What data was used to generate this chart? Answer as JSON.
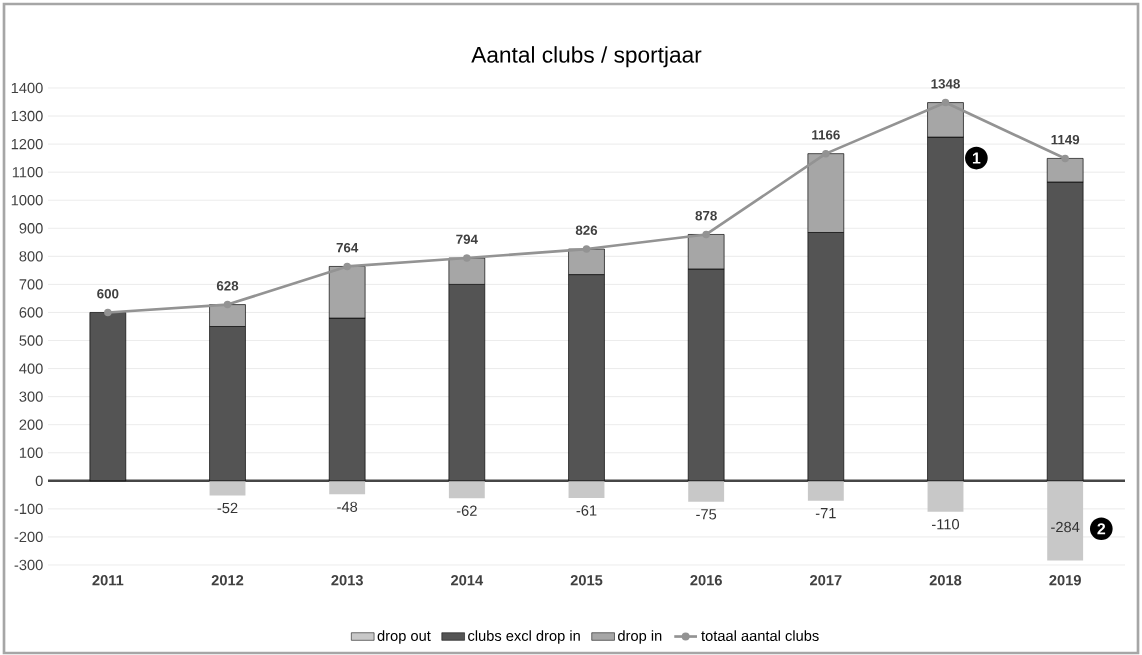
{
  "chart_data": {
    "type": "bar",
    "title": "Aantal clubs / sportjaar",
    "stacked": true,
    "categories": [
      "2011",
      "2012",
      "2013",
      "2014",
      "2015",
      "2016",
      "2017",
      "2018",
      "2019"
    ],
    "series": [
      {
        "name": "drop out",
        "type": "bar",
        "color": "#c8c8c8",
        "values": [
          null,
          -52,
          -48,
          -62,
          -61,
          -75,
          -71,
          -110,
          -284
        ],
        "value_labels": [
          null,
          "-52",
          "-48",
          "-62",
          "-61",
          "-75",
          "-71",
          "-110",
          "-284"
        ]
      },
      {
        "name": "clubs excl drop in",
        "type": "bar",
        "color": "#545454",
        "values": [
          600,
          550,
          580,
          700,
          735,
          755,
          885,
          1225,
          1065
        ]
      },
      {
        "name": "drop in",
        "type": "bar",
        "color": "#a6a6a6",
        "values": [
          null,
          78,
          184,
          94,
          91,
          123,
          281,
          123,
          84
        ]
      },
      {
        "name": "totaal aantal clubs",
        "type": "line",
        "color": "#939393",
        "marker": "circle",
        "values": [
          600,
          628,
          764,
          794,
          826,
          878,
          1166,
          1348,
          1149
        ],
        "value_labels": [
          "600",
          "628",
          "764",
          "794",
          "826",
          "878",
          "1166",
          "1348",
          "1149"
        ]
      }
    ],
    "ylim": [
      -300,
      1400
    ],
    "yticks": [
      -300,
      -200,
      -100,
      0,
      100,
      200,
      300,
      400,
      500,
      600,
      700,
      800,
      900,
      1000,
      1100,
      1200,
      1300,
      1400
    ],
    "grid": "y",
    "legend": "bottom",
    "annotations": [
      "1",
      "2"
    ]
  }
}
